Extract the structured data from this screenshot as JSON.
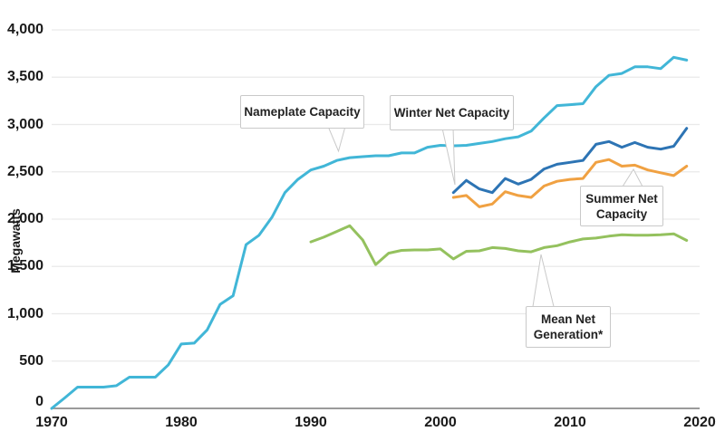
{
  "y_axis_title": "Megawatts",
  "callouts": {
    "nameplate": "Nameplate Capacity",
    "winter": "Winter Net Capacity",
    "summer": "Summer Net\nCapacity",
    "mean": "Mean Net\nGeneration*"
  },
  "colors": {
    "nameplate": "#41b6d7",
    "winter": "#2d74b4",
    "summer": "#f0a142",
    "mean": "#94c15e",
    "grid": "#e9e9e9",
    "axis": "#9b9b9b",
    "text": "#1a1a1a",
    "callout_border": "#c9c9c9"
  },
  "chart_data": {
    "type": "line",
    "title": "",
    "xlabel": "",
    "ylabel": "Megawatts",
    "xlim": [
      1970,
      2020
    ],
    "ylim": [
      0,
      4000
    ],
    "grid": "horizontal gridlines every 500 MW",
    "legend_position": "none (inline callout labels with leader pointers)",
    "xticks": [
      {
        "value": 1970,
        "label": "1970"
      },
      {
        "value": 1980,
        "label": "1980"
      },
      {
        "value": 1990,
        "label": "1990"
      },
      {
        "value": 2000,
        "label": "2000"
      },
      {
        "value": 2010,
        "label": "2010"
      },
      {
        "value": 2020,
        "label": "2020"
      }
    ],
    "yticks": [
      {
        "value": 0,
        "label": "0"
      },
      {
        "value": 500,
        "label": "500"
      },
      {
        "value": 1000,
        "label": "1,000"
      },
      {
        "value": 1500,
        "label": "1,500"
      },
      {
        "value": 2000,
        "label": "2,000"
      },
      {
        "value": 2500,
        "label": "2,500"
      },
      {
        "value": 3000,
        "label": "3,000"
      },
      {
        "value": 3500,
        "label": "3,500"
      },
      {
        "value": 4000,
        "label": "4,000"
      }
    ],
    "series": [
      {
        "key": "nameplate",
        "name": "Nameplate Capacity",
        "color": "#41b6d7",
        "x": [
          1970,
          1971,
          1972,
          1973,
          1974,
          1975,
          1976,
          1977,
          1978,
          1979,
          1980,
          1981,
          1982,
          1983,
          1984,
          1985,
          1986,
          1987,
          1988,
          1989,
          1990,
          1991,
          1992,
          1993,
          1994,
          1995,
          1996,
          1997,
          1998,
          1999,
          2000,
          2001,
          2002,
          2003,
          2004,
          2005,
          2006,
          2007,
          2008,
          2009,
          2010,
          2011,
          2012,
          2013,
          2014,
          2015,
          2016,
          2017,
          2018,
          2019
        ],
        "values": [
          0,
          110,
          225,
          225,
          225,
          240,
          330,
          330,
          330,
          460,
          680,
          690,
          830,
          1100,
          1190,
          1730,
          1830,
          2020,
          2280,
          2420,
          2520,
          2560,
          2620,
          2650,
          2660,
          2670,
          2670,
          2700,
          2700,
          2760,
          2780,
          2775,
          2780,
          2800,
          2820,
          2850,
          2870,
          2930,
          3070,
          3200,
          3210,
          3220,
          3400,
          3520,
          3540,
          3610,
          3610,
          3590,
          3710,
          3680
        ]
      },
      {
        "key": "winter",
        "name": "Winter Net Capacity",
        "color": "#2d74b4",
        "x": [
          2001,
          2002,
          2003,
          2004,
          2005,
          2006,
          2007,
          2008,
          2009,
          2010,
          2011,
          2012,
          2013,
          2014,
          2015,
          2016,
          2017,
          2018,
          2019
        ],
        "values": [
          2280,
          2410,
          2320,
          2280,
          2430,
          2370,
          2420,
          2530,
          2580,
          2600,
          2620,
          2790,
          2820,
          2760,
          2810,
          2760,
          2740,
          2770,
          2960
        ]
      },
      {
        "key": "summer",
        "name": "Summer Net Capacity",
        "color": "#f0a142",
        "x": [
          2001,
          2002,
          2003,
          2004,
          2005,
          2006,
          2007,
          2008,
          2009,
          2010,
          2011,
          2012,
          2013,
          2014,
          2015,
          2016,
          2017,
          2018,
          2019
        ],
        "values": [
          2230,
          2250,
          2130,
          2160,
          2290,
          2250,
          2230,
          2350,
          2400,
          2420,
          2430,
          2600,
          2630,
          2560,
          2570,
          2520,
          2490,
          2460,
          2560
        ]
      },
      {
        "key": "mean",
        "name": "Mean Net Generation*",
        "color": "#94c15e",
        "x": [
          1990,
          1991,
          1992,
          1993,
          1994,
          1995,
          1996,
          1997,
          1998,
          1999,
          2000,
          2001,
          2002,
          2003,
          2004,
          2005,
          2006,
          2007,
          2008,
          2009,
          2010,
          2011,
          2012,
          2013,
          2014,
          2015,
          2016,
          2017,
          2018,
          2019
        ],
        "values": [
          1760,
          1810,
          1870,
          1930,
          1780,
          1520,
          1640,
          1670,
          1675,
          1675,
          1685,
          1580,
          1660,
          1665,
          1700,
          1690,
          1665,
          1655,
          1700,
          1720,
          1760,
          1790,
          1800,
          1820,
          1835,
          1830,
          1830,
          1835,
          1845,
          1775
        ]
      }
    ]
  }
}
